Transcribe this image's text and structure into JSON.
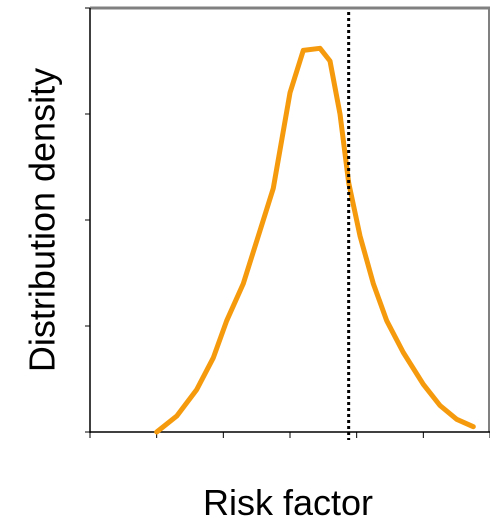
{
  "chart_data": {
    "type": "line",
    "xlabel": "Risk factor",
    "ylabel": "Distribution density",
    "title": "",
    "grid": false,
    "tick_labels": false,
    "xlim": [
      0,
      6
    ],
    "ylim": [
      0,
      4
    ],
    "x_tick_count": 7,
    "y_tick_count": 5,
    "series": [
      {
        "color": "#f59a0c",
        "x": [
          1.0,
          1.3,
          1.6,
          1.85,
          2.05,
          2.3,
          2.55,
          2.75,
          3.0,
          3.2,
          3.45,
          3.6,
          3.75,
          3.88,
          4.05,
          4.25,
          4.45,
          4.7,
          5.0,
          5.25,
          5.5,
          5.75
        ],
        "y": [
          0.0,
          0.15,
          0.4,
          0.7,
          1.05,
          1.4,
          1.9,
          2.3,
          3.2,
          3.6,
          3.62,
          3.5,
          3.0,
          2.35,
          1.85,
          1.4,
          1.05,
          0.75,
          0.45,
          0.25,
          0.12,
          0.05
        ]
      }
    ],
    "reference_line": {
      "x": 3.88,
      "style": "dotted",
      "color": "#000000"
    },
    "colors": {
      "frame": "#808080",
      "axis": "#000000"
    }
  }
}
